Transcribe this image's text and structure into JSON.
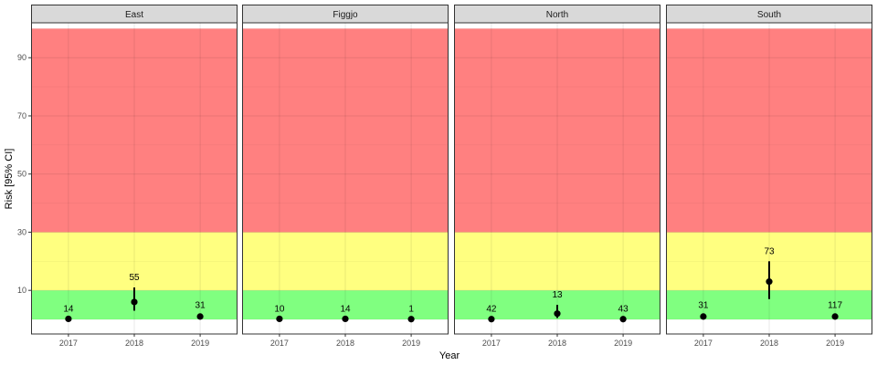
{
  "chart_data": {
    "type": "scatter",
    "facets": [
      "East",
      "Figgjo",
      "North",
      "South"
    ],
    "xlabel": "Year",
    "ylabel": "Risk [95% CI]",
    "x_categories": [
      "2017",
      "2018",
      "2019"
    ],
    "yticks": [
      10,
      30,
      50,
      70,
      90
    ],
    "ylim": [
      -5,
      102
    ],
    "bands": [
      {
        "from": 0,
        "to": 10,
        "color": "#80ff80"
      },
      {
        "from": 10,
        "to": 30,
        "color": "#ffff80"
      },
      {
        "from": 30,
        "to": 100,
        "color": "#ff8080"
      }
    ],
    "panels": [
      {
        "facet": "East",
        "points": [
          {
            "x": "2017",
            "y": 0.2,
            "lo": 0.2,
            "hi": 0.2,
            "label": "14"
          },
          {
            "x": "2018",
            "y": 6,
            "lo": 3,
            "hi": 11,
            "label": "55"
          },
          {
            "x": "2019",
            "y": 1,
            "lo": 0.5,
            "hi": 1.5,
            "label": "31"
          }
        ]
      },
      {
        "facet": "Figgjo",
        "points": [
          {
            "x": "2017",
            "y": 0.2,
            "lo": 0.2,
            "hi": 0.2,
            "label": "10"
          },
          {
            "x": "2018",
            "y": 0.2,
            "lo": 0.2,
            "hi": 0.2,
            "label": "14"
          },
          {
            "x": "2019",
            "y": 0.1,
            "lo": 0.1,
            "hi": 0.1,
            "label": "1"
          }
        ]
      },
      {
        "facet": "North",
        "points": [
          {
            "x": "2017",
            "y": 0.1,
            "lo": 0.1,
            "hi": 0.1,
            "label": "42"
          },
          {
            "x": "2018",
            "y": 2,
            "lo": 0.5,
            "hi": 5,
            "label": "13"
          },
          {
            "x": "2019",
            "y": 0.1,
            "lo": 0.1,
            "hi": 0.1,
            "label": "43"
          }
        ]
      },
      {
        "facet": "South",
        "points": [
          {
            "x": "2017",
            "y": 1,
            "lo": 0.5,
            "hi": 1.5,
            "label": "31"
          },
          {
            "x": "2018",
            "y": 13,
            "lo": 7,
            "hi": 20,
            "label": "73"
          },
          {
            "x": "2019",
            "y": 1,
            "lo": 0.6,
            "hi": 1.5,
            "label": "117"
          }
        ]
      }
    ],
    "colors": {
      "strip_fill": "#d9d9d9",
      "point": "#000000",
      "grid": "#ebebeb"
    }
  }
}
